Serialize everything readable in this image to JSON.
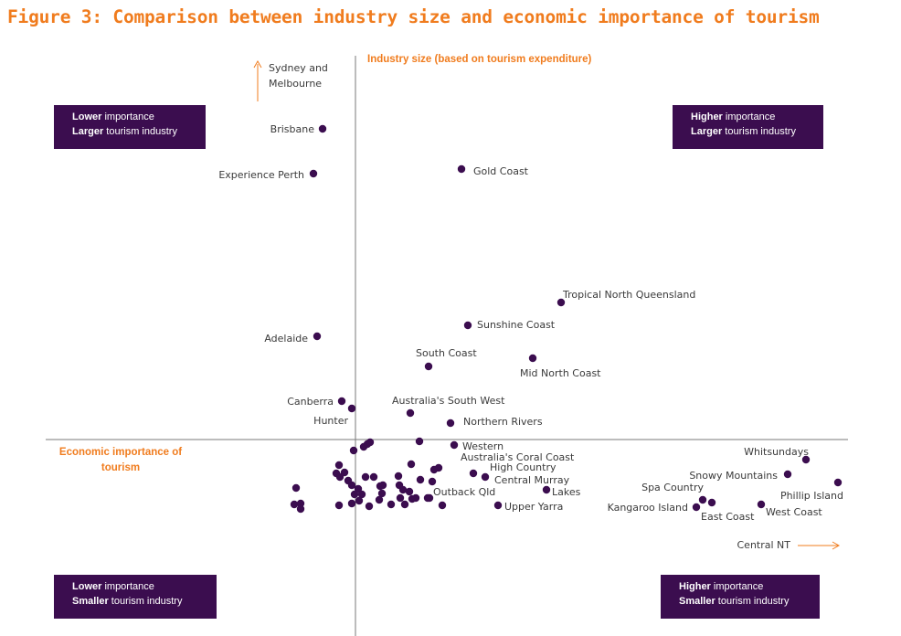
{
  "figure_title": "Figure 3: Comparison between industry size and economic importance of tourism",
  "colors": {
    "accent": "#f07c1e",
    "dot": "#3b0d4f",
    "axis": "#7a7a7a",
    "box": "#3b0d4f"
  },
  "quadrants": {
    "top_left": {
      "line1_bold": "Lower",
      "line1_rest": " importance",
      "line2_bold": "Larger",
      "line2_rest": " tourism industry"
    },
    "top_right": {
      "line1_bold": "Higher",
      "line1_rest": " importance",
      "line2_bold": "Larger",
      "line2_rest": " tourism industry"
    },
    "bottom_left": {
      "line1_bold": "Lower",
      "line1_rest": " importance",
      "line2_bold": "Smaller",
      "line2_rest": " tourism industry"
    },
    "bottom_right": {
      "line1_bold": "Higher",
      "line1_rest": " importance",
      "line2_bold": "Smaller",
      "line2_rest": " tourism industry"
    }
  },
  "chart_data": {
    "type": "scatter",
    "title": "Figure 3: Comparison between industry size and economic importance of tourism",
    "xlabel": "Economic importance of tourism",
    "ylabel": "Industry size (based on tourism expenditure)",
    "grid": false,
    "points": [
      {
        "name": "Brisbane",
        "x": 0.0,
        "y": 0.0
      },
      {
        "name": "Experience Perth",
        "x": 0.0,
        "y": 0.0
      },
      {
        "name": "Gold Coast",
        "x": 0.0,
        "y": 0.0
      },
      {
        "name": "Tropical North Queensland",
        "x": 0.0,
        "y": 0.0
      },
      {
        "name": "Sunshine Coast",
        "x": 0.0,
        "y": 0.0
      },
      {
        "name": "Adelaide",
        "x": 0.0,
        "y": 0.0
      },
      {
        "name": "South Coast",
        "x": 0.0,
        "y": 0.0
      },
      {
        "name": "Mid North Coast",
        "x": 0.0,
        "y": 0.0
      },
      {
        "name": "Canberra",
        "x": 0.0,
        "y": 0.0
      },
      {
        "name": "Hunter",
        "x": 0.0,
        "y": 0.0
      },
      {
        "name": "Australia's South West",
        "x": 0.0,
        "y": 0.0
      },
      {
        "name": "Northern Rivers",
        "x": 0.0,
        "y": 0.0
      },
      {
        "name": "Western",
        "x": 0.0,
        "y": 0.0
      },
      {
        "name": "Australia's Coral Coast",
        "x": 0.0,
        "y": 0.0
      },
      {
        "name": "High Country",
        "x": 0.0,
        "y": 0.0
      },
      {
        "name": "Central Murray",
        "x": 0.0,
        "y": 0.0
      },
      {
        "name": "Outback Qld",
        "x": 0.0,
        "y": 0.0
      },
      {
        "name": "Lakes",
        "x": 0.0,
        "y": 0.0
      },
      {
        "name": "Upper Yarra",
        "x": 0.0,
        "y": 0.0
      },
      {
        "name": "Whitsundays",
        "x": 0.0,
        "y": 0.0
      },
      {
        "name": "Snowy Mountains",
        "x": 0.0,
        "y": 0.0
      },
      {
        "name": "Phillip Island",
        "x": 0.0,
        "y": 0.0
      },
      {
        "name": "Spa Country",
        "x": 0.0,
        "y": 0.0
      },
      {
        "name": "Kangaroo Island",
        "x": 0.0,
        "y": 0.0
      },
      {
        "name": "East Coast",
        "x": 0.0,
        "y": 0.0
      },
      {
        "name": "West Coast",
        "x": 0.0,
        "y": 0.0
      }
    ],
    "offscale_labels": [
      {
        "name": "Sydney and Melbourne",
        "direction": "up"
      },
      {
        "name": "Central NT",
        "direction": "right"
      }
    ],
    "unlabelled_points_count": 0
  }
}
